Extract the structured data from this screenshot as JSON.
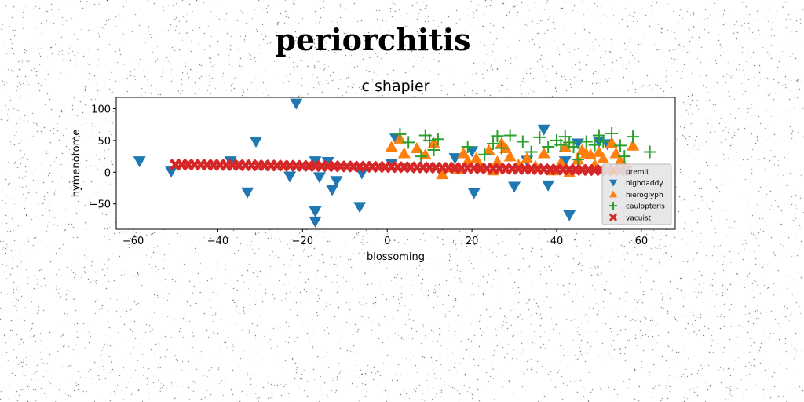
{
  "title": "periorchitis",
  "chart_data": {
    "type": "scatter",
    "subtitle": "c shapier",
    "xlabel": "blossoming",
    "ylabel": "hymenotome",
    "xlim": [
      -64,
      68
    ],
    "ylim": [
      -90,
      118
    ],
    "xticks": [
      -60,
      -40,
      -20,
      0,
      20,
      40,
      60
    ],
    "yticks": [
      -50,
      0,
      50,
      100
    ],
    "legend_position": "lower right",
    "series": [
      {
        "name": "premit",
        "marker": "triangle-up",
        "color": "#f2c9a0",
        "points": []
      },
      {
        "name": "highdaddy",
        "marker": "triangle-down",
        "color": "#1f77b4",
        "points": [
          [
            -58.5,
            17
          ],
          [
            -51,
            1
          ],
          [
            -37,
            17
          ],
          [
            -33,
            -32
          ],
          [
            -31,
            48
          ],
          [
            -23,
            -7
          ],
          [
            -21.5,
            108
          ],
          [
            -17,
            17
          ],
          [
            -17,
            -62
          ],
          [
            -17,
            -78
          ],
          [
            -16,
            -8
          ],
          [
            -14,
            16
          ],
          [
            -13,
            -28
          ],
          [
            -12,
            -14
          ],
          [
            -6.5,
            -55
          ],
          [
            -6,
            -2
          ],
          [
            1,
            13
          ],
          [
            2,
            53
          ],
          [
            16,
            22
          ],
          [
            20,
            33
          ],
          [
            20.5,
            -33
          ],
          [
            30,
            -23
          ],
          [
            33,
            18
          ],
          [
            37,
            67
          ],
          [
            38,
            -21
          ],
          [
            42,
            17
          ],
          [
            43,
            -68
          ],
          [
            45,
            45
          ],
          [
            50,
            48
          ],
          [
            52,
            44
          ]
        ]
      },
      {
        "name": "hieroglyph",
        "marker": "triangle-up",
        "color": "#ff7f0e",
        "points": [
          [
            1,
            40
          ],
          [
            3,
            53
          ],
          [
            4,
            30
          ],
          [
            7,
            38
          ],
          [
            9,
            28
          ],
          [
            11,
            46
          ],
          [
            13,
            -3
          ],
          [
            15,
            8
          ],
          [
            17,
            5
          ],
          [
            18,
            30
          ],
          [
            19,
            18
          ],
          [
            21,
            22
          ],
          [
            22,
            8
          ],
          [
            24,
            35
          ],
          [
            25,
            3
          ],
          [
            26,
            17
          ],
          [
            27,
            46
          ],
          [
            28,
            38
          ],
          [
            29,
            25
          ],
          [
            31,
            12
          ],
          [
            33,
            22
          ],
          [
            35,
            10
          ],
          [
            37,
            30
          ],
          [
            39,
            3
          ],
          [
            41,
            15
          ],
          [
            42,
            40
          ],
          [
            43,
            0
          ],
          [
            45,
            20
          ],
          [
            46,
            35
          ],
          [
            47,
            30
          ],
          [
            48,
            28
          ],
          [
            49,
            12
          ],
          [
            50,
            32
          ],
          [
            51,
            22
          ],
          [
            53,
            46
          ],
          [
            54,
            30
          ],
          [
            55,
            18
          ],
          [
            56,
            10
          ],
          [
            58,
            42
          ]
        ]
      },
      {
        "name": "caulopteris",
        "marker": "plus",
        "color": "#2ca02c",
        "points": [
          [
            3,
            60
          ],
          [
            5,
            47
          ],
          [
            8,
            25
          ],
          [
            9,
            58
          ],
          [
            10,
            50
          ],
          [
            11,
            35
          ],
          [
            12,
            52
          ],
          [
            19,
            40
          ],
          [
            23,
            28
          ],
          [
            25,
            45
          ],
          [
            26,
            57
          ],
          [
            27,
            38
          ],
          [
            29,
            58
          ],
          [
            32,
            48
          ],
          [
            34,
            32
          ],
          [
            36,
            55
          ],
          [
            38,
            40
          ],
          [
            40,
            50
          ],
          [
            41,
            43
          ],
          [
            42,
            56
          ],
          [
            43,
            47
          ],
          [
            44,
            40
          ],
          [
            45,
            20
          ],
          [
            47,
            48
          ],
          [
            49,
            43
          ],
          [
            50,
            58
          ],
          [
            51,
            48
          ],
          [
            53,
            61
          ],
          [
            55,
            42
          ],
          [
            56,
            25
          ],
          [
            58,
            56
          ],
          [
            62,
            32
          ]
        ]
      },
      {
        "name": "vacuist",
        "marker": "x",
        "color": "#d62728",
        "points": [
          [
            -50,
            12
          ],
          [
            -48.5,
            12
          ],
          [
            -47,
            12
          ],
          [
            -45.5,
            11.9
          ],
          [
            -44,
            11.8
          ],
          [
            -42.5,
            11.7
          ],
          [
            -41,
            11.6
          ],
          [
            -39.5,
            11.5
          ],
          [
            -38,
            11.4
          ],
          [
            -36.5,
            11.3
          ],
          [
            -35,
            11.2
          ],
          [
            -33.5,
            11.1
          ],
          [
            -32,
            11
          ],
          [
            -30.5,
            10.8
          ],
          [
            -29,
            10.7
          ],
          [
            -27.5,
            10.6
          ],
          [
            -26,
            10.5
          ],
          [
            -24.5,
            10.4
          ],
          [
            -23,
            10.2
          ],
          [
            -21.5,
            10.1
          ],
          [
            -20,
            10
          ],
          [
            -18.5,
            9.9
          ],
          [
            -17,
            9.8
          ],
          [
            -15.5,
            9.6
          ],
          [
            -14,
            9.5
          ],
          [
            -12.5,
            9.4
          ],
          [
            -11,
            9.2
          ],
          [
            -9.5,
            9.1
          ],
          [
            -8,
            9
          ],
          [
            -6.5,
            8.8
          ],
          [
            -5,
            8.7
          ],
          [
            -3.5,
            8.6
          ],
          [
            -2,
            8.4
          ],
          [
            -0.5,
            8.3
          ],
          [
            1,
            8.2
          ],
          [
            2.5,
            8
          ],
          [
            4,
            7.9
          ],
          [
            5.5,
            7.8
          ],
          [
            7,
            7.6
          ],
          [
            8.5,
            7.5
          ],
          [
            10,
            7.3
          ],
          [
            11.5,
            7.2
          ],
          [
            13,
            7
          ],
          [
            14.5,
            6.9
          ],
          [
            16,
            6.8
          ],
          [
            17.5,
            6.6
          ],
          [
            19,
            6.5
          ],
          [
            20.5,
            6.3
          ],
          [
            22,
            6.2
          ],
          [
            23.5,
            6
          ],
          [
            25,
            5.9
          ],
          [
            26.5,
            5.7
          ],
          [
            28,
            5.6
          ],
          [
            29.5,
            5.4
          ],
          [
            31,
            5.3
          ],
          [
            32.5,
            5.1
          ],
          [
            34,
            5
          ],
          [
            35.5,
            4.8
          ],
          [
            37,
            4.7
          ],
          [
            38.5,
            4.5
          ],
          [
            40,
            4.4
          ],
          [
            41.5,
            4.2
          ],
          [
            43,
            4.1
          ],
          [
            44.5,
            3.9
          ],
          [
            46,
            3.8
          ],
          [
            47.5,
            3.6
          ],
          [
            49,
            3.5
          ],
          [
            50.5,
            3.3
          ],
          [
            52,
            3.2
          ],
          [
            53.5,
            3
          ],
          [
            55,
            2.9
          ],
          [
            56.5,
            2.7
          ]
        ]
      }
    ]
  }
}
